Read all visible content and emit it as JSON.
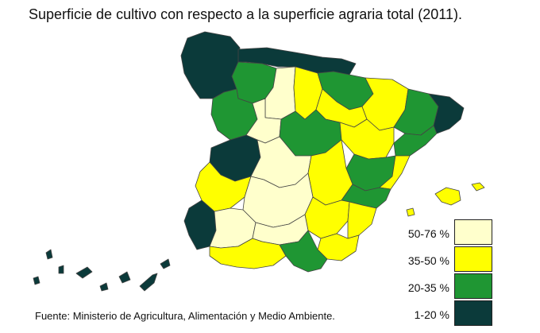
{
  "title": "Superficie de cultivo con respecto a la superficie agraria total (2011).",
  "source": "Fuente: Ministerio de Agricultura, Alimentación y Medio Ambiente.",
  "colors": {
    "very_high": "#ffffcc",
    "high": "#ffff00",
    "medium": "#1f9633",
    "low": "#0b3a3a",
    "border": "#444444"
  },
  "legend": [
    {
      "label": "50-76 %",
      "color": "#ffffcc"
    },
    {
      "label": "35-50 %",
      "color": "#ffff00"
    },
    {
      "label": "20-35 %",
      "color": "#1f9633"
    },
    {
      "label": "1-20 %",
      "color": "#0b3a3a"
    }
  ]
}
